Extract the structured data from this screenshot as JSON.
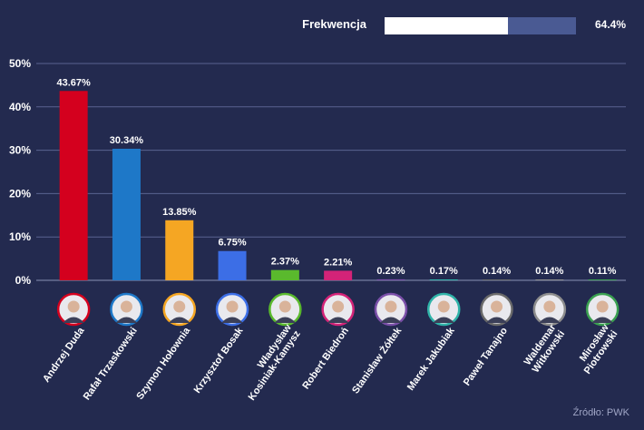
{
  "header": {
    "turnout_label": "Frekwencja",
    "turnout_value_text": "64.4%",
    "turnout_fraction": 0.644
  },
  "chart_data": {
    "type": "bar",
    "categories": [
      "Andrzej Duda",
      "Rafał Trzaskowski",
      "Szymon Hołownia",
      "Krzysztof Bosak",
      "Władysław Kosiniak-Kamysz",
      "Robert Biedroń",
      "Stanisław Żółtek",
      "Marek Jakubiak",
      "Paweł Tanajno",
      "Waldemar Witkowski",
      "Mirosław Piotrowski"
    ],
    "category_lines": [
      [
        "Andrzej Duda"
      ],
      [
        "Rafał Trzaskowski"
      ],
      [
        "Szymon Hołownia"
      ],
      [
        "Krzysztof Bosak"
      ],
      [
        "Władysław",
        "Kosiniak-Kamysz"
      ],
      [
        "Robert Biedroń"
      ],
      [
        "Stanisław Żółtek"
      ],
      [
        "Marek Jakubiak"
      ],
      [
        "Paweł Tanajno"
      ],
      [
        "Waldemar",
        "Witkowski"
      ],
      [
        "Mirosław",
        "Piotrowski"
      ]
    ],
    "values": [
      43.67,
      30.34,
      13.85,
      6.75,
      2.37,
      2.21,
      0.23,
      0.17,
      0.14,
      0.14,
      0.11
    ],
    "value_labels": [
      "43.67%",
      "30.34%",
      "13.85%",
      "6.75%",
      "2.37%",
      "2.21%",
      "0.23%",
      "0.17%",
      "0.14%",
      "0.14%",
      "0.11%"
    ],
    "colors": [
      "#d4001e",
      "#1e78c8",
      "#f5a623",
      "#3c6ee6",
      "#5ab92d",
      "#d42378",
      "#7a4fa8",
      "#2fb3a8",
      "#6a6a6a",
      "#8c8c8c",
      "#3aa050"
    ],
    "yticks": [
      0,
      10,
      20,
      30,
      40,
      50
    ],
    "ytick_labels": [
      "0%",
      "10%",
      "20%",
      "30%",
      "40%",
      "50%"
    ],
    "ylim": [
      0,
      50
    ],
    "grid": true,
    "xlabel": "",
    "ylabel": ""
  },
  "footer": {
    "source": "Źródło: PWK"
  }
}
